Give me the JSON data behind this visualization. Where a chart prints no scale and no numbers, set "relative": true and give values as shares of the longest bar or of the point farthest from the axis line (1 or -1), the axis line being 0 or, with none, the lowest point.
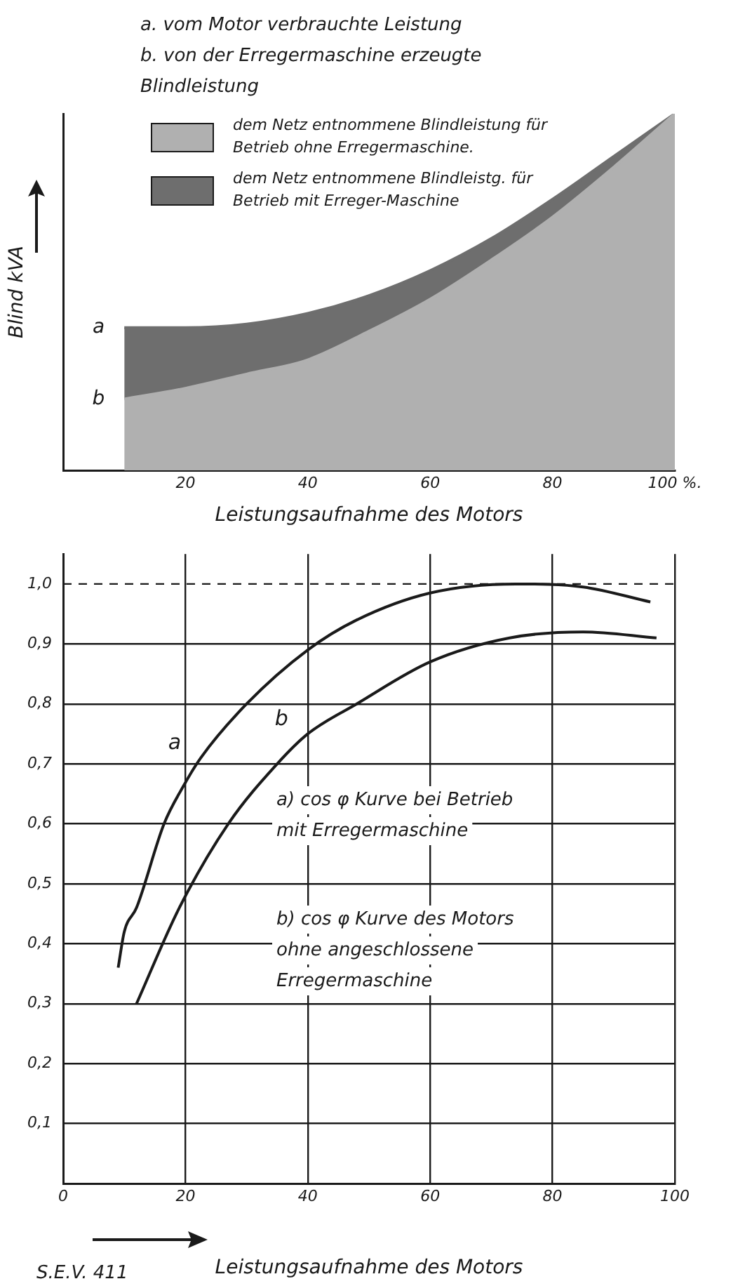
{
  "chart_data": [
    {
      "type": "area",
      "relative": true,
      "xlabel": "Leistungsaufnahme des Motors",
      "ylabel": "Blind kVA",
      "xlim": [
        0,
        100
      ],
      "xticks": [
        20,
        40,
        60,
        80,
        {
          "value": 100,
          "label": "100 %."
        }
      ],
      "x": [
        10,
        20,
        30,
        40,
        50,
        60,
        70,
        80,
        90,
        100
      ],
      "legend": "top left",
      "series": [
        {
          "name": "dem Netz entnommene Blindleistung für Betrieb ohne Erregermaschine.",
          "color": "#b0b0b0",
          "values": [
            0.2,
            0.23,
            0.27,
            0.31,
            0.39,
            0.48,
            0.59,
            0.71,
            0.85,
            1
          ]
        },
        {
          "name": "dem Netz entnommene Blindleistg. für Betrieb mit Erreger-Maschine",
          "color": "#6e6e6e",
          "values": [
            0.4,
            0.4,
            0.41,
            0.44,
            0.49,
            0.56,
            0.65,
            0.76,
            0.88,
            1
          ]
        }
      ],
      "annotations": [
        "a. vom Motor verbrauchte Leistung",
        "b. von der Erregermaschine erzeugte Blindleistung",
        {
          "text": "a",
          "x": 10,
          "y": 0.4
        },
        {
          "text": "b",
          "x": 10,
          "y": 0.2
        }
      ]
    },
    {
      "type": "line",
      "xlabel": "Leistungsaufnahme des Motors",
      "xlim": [
        0,
        100
      ],
      "xticks": [
        0,
        20,
        40,
        60,
        80,
        100
      ],
      "ylim": [
        0,
        1.05
      ],
      "yticks": [
        {
          "value": 0.1,
          "label": "0,1"
        },
        {
          "value": 0.2,
          "label": "0,2"
        },
        {
          "value": 0.3,
          "label": "0,3"
        },
        {
          "value": 0.4,
          "label": "0,4"
        },
        {
          "value": 0.5,
          "label": "0,5"
        },
        {
          "value": 0.6,
          "label": "0,6"
        },
        {
          "value": 0.7,
          "label": "0,7"
        },
        {
          "value": 0.8,
          "label": "0,8"
        },
        {
          "value": 0.9,
          "label": "0,9"
        },
        {
          "value": 1,
          "label": "1,0"
        }
      ],
      "grid": true,
      "series": [
        {
          "name": "a",
          "color": "#1a1a1a",
          "x": [
            9,
            10,
            12,
            16.5,
            19.5,
            22.5,
            30,
            40,
            48,
            60,
            74,
            85,
            96
          ],
          "values": [
            0.36,
            0.42,
            0.46,
            0.6,
            0.66,
            0.71,
            0.8,
            0.89,
            0.94,
            0.985,
            1.0,
            0.995,
            0.97
          ]
        },
        {
          "name": "b",
          "color": "#1a1a1a",
          "x": [
            12,
            19,
            27,
            35,
            40,
            48,
            60,
            73,
            85,
            97
          ],
          "values": [
            0.3,
            0.46,
            0.6,
            0.7,
            0.75,
            0.8,
            0.87,
            0.91,
            0.92,
            0.91
          ]
        }
      ],
      "ref_lines": [
        {
          "axis": "y",
          "value": 1,
          "line_style": "dashed"
        }
      ],
      "annotations": [
        "a) cos φ Kurve bei Betrieb mit Erregermaschine",
        "b) cos φ Kurve des Motors ohne angeschlossene Erregermaschine",
        "S.E.V. 411"
      ]
    }
  ]
}
